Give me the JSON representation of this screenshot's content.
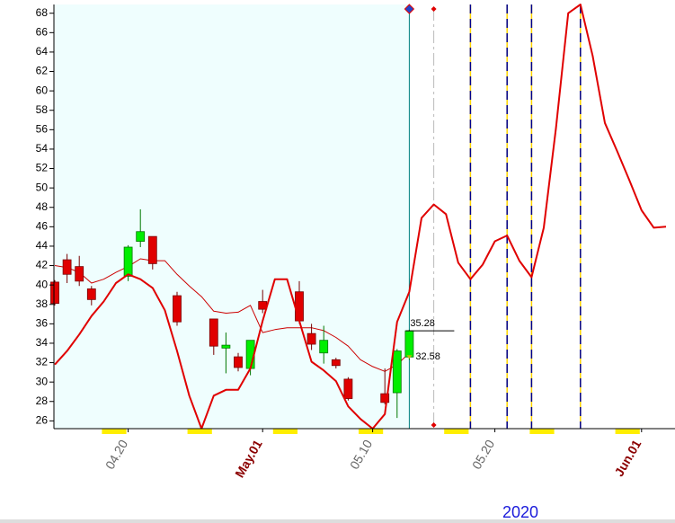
{
  "chart_data": {
    "type": "candlestick",
    "year": "2020",
    "ylim": [
      25.2,
      68.9
    ],
    "yticks": [
      26,
      28,
      30,
      32,
      34,
      36,
      38,
      40,
      42,
      44,
      46,
      48,
      50,
      52,
      54,
      56,
      58,
      60,
      62,
      64,
      66,
      68
    ],
    "xlim": [
      "2020-04-14",
      "2020-06-03"
    ],
    "xticks": [
      {
        "value": "2020-04-20",
        "label": "04.20"
      },
      {
        "value": "2020-05-01",
        "label": "May.01"
      },
      {
        "value": "2020-05-10",
        "label": "05.10"
      },
      {
        "value": "2020-05-20",
        "label": "05.20"
      },
      {
        "value": "2020-06-01",
        "label": "Jun.01"
      }
    ],
    "cursor_date": "2020-05-13",
    "forecast_marker_date": "2020-05-15",
    "vlines": [
      "2020-05-18",
      "2020-05-21",
      "2020-05-23",
      "2020-05-27"
    ],
    "candles": {
      "up_color": "#00ee00",
      "down_color": "#e00000",
      "x": [
        "2020-04-14",
        "2020-04-15",
        "2020-04-16",
        "2020-04-17",
        "2020-04-20",
        "2020-04-21",
        "2020-04-22",
        "2020-04-24",
        "2020-04-27",
        "2020-04-28",
        "2020-04-29",
        "2020-04-30",
        "2020-05-01",
        "2020-05-04",
        "2020-05-05",
        "2020-05-06",
        "2020-05-07",
        "2020-05-08",
        "2020-05-11",
        "2020-05-12",
        "2020-05-13"
      ],
      "open": [
        40.3,
        42.6,
        41.9,
        39.6,
        40.9,
        44.5,
        45.0,
        38.9,
        36.5,
        33.5,
        32.6,
        31.4,
        38.3,
        39.3,
        35.0,
        33.0,
        32.3,
        30.3,
        28.8,
        28.9,
        32.58
      ],
      "high": [
        40.5,
        43.2,
        43.0,
        39.9,
        44.1,
        47.8,
        45.0,
        39.3,
        36.5,
        35.1,
        33.0,
        34.3,
        39.5,
        40.4,
        36.0,
        35.8,
        32.5,
        30.5,
        31.4,
        33.4,
        35.4
      ],
      "low": [
        37.9,
        40.2,
        39.9,
        37.9,
        40.4,
        43.9,
        41.6,
        35.8,
        32.8,
        30.9,
        31.1,
        30.7,
        37.1,
        36.0,
        33.3,
        31.9,
        31.4,
        28.1,
        27.7,
        26.3,
        32.3
      ],
      "close": [
        38.1,
        41.1,
        40.4,
        38.5,
        43.9,
        45.5,
        42.2,
        36.2,
        33.7,
        33.8,
        31.5,
        34.3,
        37.5,
        36.3,
        33.9,
        34.3,
        31.7,
        28.3,
        27.9,
        33.2,
        35.28
      ]
    },
    "x": [
      "2020-04-14",
      "2020-04-15",
      "2020-04-16",
      "2020-04-17",
      "2020-04-18",
      "2020-04-19",
      "2020-04-20",
      "2020-04-21",
      "2020-04-22",
      "2020-04-23",
      "2020-04-24",
      "2020-04-25",
      "2020-04-26",
      "2020-04-27",
      "2020-04-28",
      "2020-04-29",
      "2020-04-30",
      "2020-05-01",
      "2020-05-02",
      "2020-05-03",
      "2020-05-04",
      "2020-05-05",
      "2020-05-06",
      "2020-05-07",
      "2020-05-08",
      "2020-05-09",
      "2020-05-10",
      "2020-05-11",
      "2020-05-12",
      "2020-05-13",
      "2020-05-14",
      "2020-05-15",
      "2020-05-16",
      "2020-05-17",
      "2020-05-18",
      "2020-05-19",
      "2020-05-20",
      "2020-05-21",
      "2020-05-22",
      "2020-05-23",
      "2020-05-24",
      "2020-05-25",
      "2020-05-26",
      "2020-05-27",
      "2020-05-28",
      "2020-05-29",
      "2020-05-30",
      "2020-05-31",
      "2020-06-01",
      "2020-06-02",
      "2020-06-03"
    ],
    "series": [
      {
        "color": "#e00000",
        "width": 2,
        "values": [
          31.8,
          33.2,
          34.9,
          36.8,
          38.3,
          40.2,
          41.1,
          40.6,
          39.7,
          37.4,
          33.2,
          28.6,
          25.2,
          28.6,
          29.2,
          29.2,
          31.4,
          36.3,
          40.6,
          40.6,
          36.3,
          32.1,
          31.2,
          30.1,
          27.5,
          26.2,
          25.2,
          26.7,
          36.2,
          39.3,
          46.9,
          48.3,
          47.3,
          42.3,
          40.6,
          42.1,
          44.5,
          45.1,
          42.5,
          40.8,
          45.9,
          56.2,
          68.0,
          68.9,
          63.6,
          56.7,
          53.8,
          50.8,
          47.7,
          45.9,
          46.0
        ]
      },
      {
        "color": "#cc0000",
        "width": 1,
        "values": [
          42.0,
          41.8,
          41.3,
          40.2,
          40.6,
          41.3,
          41.9,
          42.7,
          42.5,
          42.5,
          41.1,
          39.9,
          38.8,
          37.3,
          37.1,
          37.2,
          37.9,
          35.1,
          35.4,
          35.6,
          35.6,
          35.6,
          35.3,
          34.6,
          33.7,
          32.3,
          31.6,
          31.1,
          31.8,
          33.0,
          null,
          null,
          null,
          null,
          null,
          null,
          null,
          null,
          null,
          null,
          null,
          null,
          null,
          null,
          null,
          null,
          null,
          null,
          null,
          null,
          null
        ]
      }
    ]
  }
}
